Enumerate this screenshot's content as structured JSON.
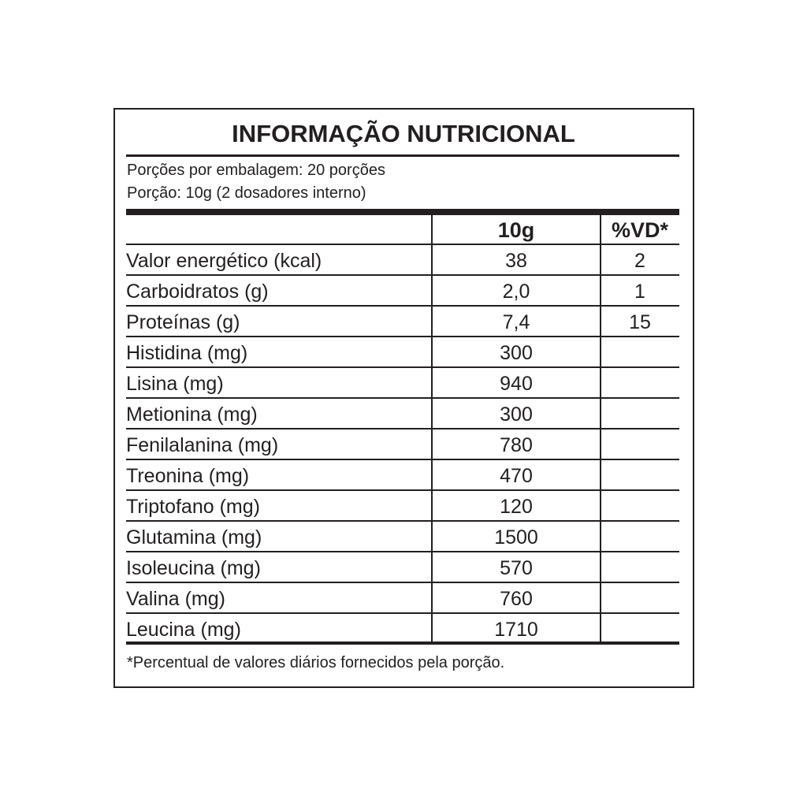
{
  "title": "INFORMAÇÃO NUTRICIONAL",
  "servings_per_package": "Porções por embalagem: 20 porções",
  "serving_size": "Porção: 10g (2 dosadores interno)",
  "columns": [
    "",
    "10g",
    "%VD*"
  ],
  "rows": [
    {
      "name": "Valor energético (kcal)",
      "amount": "38",
      "dv": "2"
    },
    {
      "name": "Carboidratos (g)",
      "amount": "2,0",
      "dv": "1"
    },
    {
      "name": "Proteínas (g)",
      "amount": "7,4",
      "dv": "15"
    },
    {
      "name": "Histidina (mg)",
      "amount": "300",
      "dv": ""
    },
    {
      "name": "Lisina (mg)",
      "amount": "940",
      "dv": ""
    },
    {
      "name": "Metionina (mg)",
      "amount": "300",
      "dv": ""
    },
    {
      "name": "Fenilalanina (mg)",
      "amount": "780",
      "dv": ""
    },
    {
      "name": "Treonina (mg)",
      "amount": "470",
      "dv": ""
    },
    {
      "name": "Triptofano (mg)",
      "amount": "120",
      "dv": ""
    },
    {
      "name": "Glutamina (mg)",
      "amount": "1500",
      "dv": ""
    },
    {
      "name": "Isoleucina (mg)",
      "amount": "570",
      "dv": ""
    },
    {
      "name": "Valina (mg)",
      "amount": "760",
      "dv": ""
    },
    {
      "name": "Leucina (mg)",
      "amount": "1710",
      "dv": ""
    }
  ],
  "footnote": "*Percentual de valores diários fornecidos pela porção."
}
